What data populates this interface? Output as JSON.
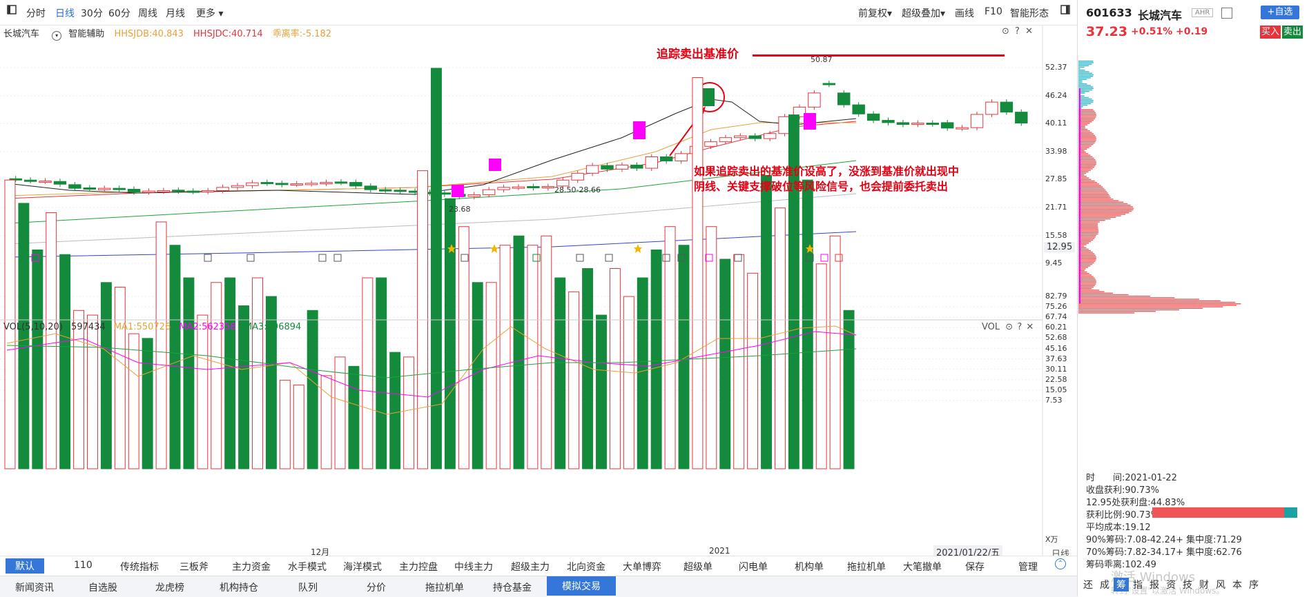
{
  "toolbar": {
    "items": [
      "分时",
      "日线",
      "30分",
      "60分",
      "周线",
      "月线",
      "更多 ▾"
    ],
    "right_items": [
      "前复权▾",
      "超级叠加▾",
      "画线",
      "F10",
      "智能形态"
    ]
  },
  "legend": {
    "stock": "长城汽车",
    "assist": "智能辅助",
    "hhsjdb": "HHSJDB:40.843",
    "hhsjdc": "HHSJDC:40.714",
    "deviation": "乖离率:-5.182"
  },
  "annotations": {
    "title": "追踪卖出基准价",
    "note_line1": "如果追踪卖出的基准价设高了，没涨到基准价就出现中",
    "note_line2": "阴线、关键支撑破位等风险信号，也会提前委托卖出",
    "high_label": "50.87",
    "mid_label": "28.50-28.66",
    "low_label": "23.68"
  },
  "price_axis": [
    "52.37",
    "46.24",
    "40.11",
    "33.98",
    "27.85",
    "21.71",
    "15.58",
    "12.95",
    "9.45"
  ],
  "volume_legend": {
    "vol": "VOL(5,10,20)",
    "vol_value": "597434",
    "ma1": "MA1:550726",
    "ma2": "MA2:562358",
    "ma3": "MA3:496894",
    "vol_tag": "VOL"
  },
  "volume_axis": [
    "82.79",
    "75.26",
    "67.74",
    "60.21",
    "52.68",
    "45.16",
    "37.63",
    "30.11",
    "22.58",
    "15.05",
    "7.53",
    "X万"
  ],
  "time_axis": {
    "dec": "12月",
    "jan": "2021",
    "current": "2021/01/22/五",
    "period": "日线"
  },
  "bottom_tabs": [
    "默认",
    "110",
    "传统指标",
    "三板斧",
    "主力资金",
    "水手模式",
    "海洋模式",
    "主力控盘",
    "中线主力",
    "超级主力",
    "北向资金",
    "大单博弈",
    "超级单",
    "闪电单",
    "机构单",
    "拖拉机单",
    "大笔撤单",
    "保存",
    "管理"
  ],
  "news_tabs": [
    "新闻资讯",
    "自选股",
    "龙虎榜",
    "机构持仓",
    "队列",
    "分价",
    "拖拉机单",
    "持仓基金",
    "模拟交易"
  ],
  "side_tabs": [
    "还",
    "成",
    "筹",
    "指",
    "报",
    "资",
    "技",
    "财",
    "风",
    "本",
    "序"
  ],
  "quote": {
    "code": "601633",
    "name": "长城汽车",
    "tag": "AHR",
    "add_label": "+自选",
    "price": "37.23",
    "pct": "+0.51%",
    "change": "+0.19",
    "buy": "买入",
    "sell": "卖出"
  },
  "chip": {
    "time": "时　　间:2021-01-22",
    "profit": "收盘获利:90.73%",
    "profit_at": "12.95处获利盘:44.83%",
    "ratio": "获利比例:90.73%",
    "avg_cost": "平均成本:19.12",
    "c90": "90%筹码:7.08-42.24+ 集中度:71.29",
    "c70": "70%筹码:7.82-34.17+ 集中度:62.76",
    "deviation": "筹码乖离:102.49",
    "ratio_value": 0.9073
  },
  "watermark": {
    "line1": "激活 Windows",
    "line2": "转到\"设置\"以激活 Windows。"
  },
  "colors": {
    "up": "#e8333a",
    "down": "#148a3c",
    "accent": "#2b6fd6",
    "magenta": "#ff00ff"
  }
}
